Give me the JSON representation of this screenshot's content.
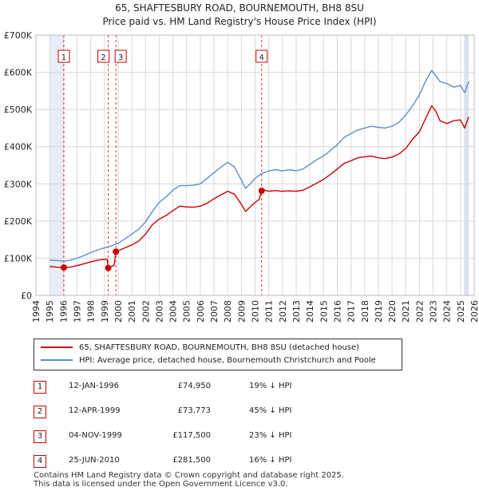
{
  "title_line1": "65, SHAFTESBURY ROAD, BOURNEMOUTH, BH8 8SU",
  "title_line2": "Price paid vs. HM Land Registry's House Price Index (HPI)",
  "colors": {
    "price_paid": "#cc0000",
    "hpi": "#5b8fd0",
    "grid": "#d8d8d8",
    "band": "#e8edf7"
  },
  "legend": {
    "price_paid_label": "65, SHAFTESBURY ROAD, BOURNEMOUTH, BH8 8SU (detached house)",
    "hpi_label": "HPI: Average price, detached house, Bournemouth Christchurch and Poole"
  },
  "sales": [
    {
      "num": "1",
      "date": "12-JAN-1996",
      "price": "£74,950",
      "hpi": "19% ↓ HPI"
    },
    {
      "num": "2",
      "date": "12-APR-1999",
      "price": "£73,773",
      "hpi": "45% ↓ HPI"
    },
    {
      "num": "3",
      "date": "04-NOV-1999",
      "price": "£117,500",
      "hpi": "23% ↓ HPI"
    },
    {
      "num": "4",
      "date": "25-JUN-2010",
      "price": "£281,500",
      "hpi": "16% ↓ HPI"
    }
  ],
  "footer": {
    "line1": "Contains HM Land Registry data © Crown copyright and database right 2025.",
    "line2": "This data is licensed under the Open Government Licence v3.0."
  },
  "chart_data": {
    "type": "line",
    "title": "65, SHAFTESBURY ROAD, BOURNEMOUTH, BH8 8SU",
    "subtitle": "Price paid vs. HM Land Registry's House Price Index (HPI)",
    "xlim": [
      1994,
      2026
    ],
    "ylim": [
      0,
      700000
    ],
    "y_ticks": [
      0,
      100000,
      200000,
      300000,
      400000,
      500000,
      600000,
      700000
    ],
    "y_tick_labels": [
      "£0",
      "£100K",
      "£200K",
      "£300K",
      "£400K",
      "£500K",
      "£600K",
      "£700K"
    ],
    "x_ticks": [
      1994,
      1995,
      1996,
      1997,
      1998,
      1999,
      2000,
      2001,
      2002,
      2003,
      2004,
      2005,
      2006,
      2007,
      2008,
      2009,
      2010,
      2011,
      2012,
      2013,
      2014,
      2015,
      2016,
      2017,
      2018,
      2019,
      2020,
      2021,
      2022,
      2023,
      2024,
      2025,
      2026
    ],
    "x_tick_labels": [
      "1994",
      "1995",
      "1996",
      "1997",
      "1998",
      "1999",
      "2000",
      "2001",
      "2002",
      "2003",
      "2004",
      "2005",
      "2006",
      "2007",
      "2008",
      "2009",
      "2010",
      "2011",
      "2012",
      "2013",
      "2014",
      "2015",
      "2016",
      "2017",
      "2018",
      "2019",
      "2020",
      "2021",
      "2022",
      "2023",
      "2024",
      "2025",
      "2026"
    ],
    "shaded_regions": [
      [
        1995.0,
        1996.04
      ],
      [
        2025.3,
        2025.6
      ]
    ],
    "sale_markers": [
      {
        "label": "1",
        "x": 1996.04,
        "y": 74950
      },
      {
        "label": "2",
        "x": 1999.28,
        "y": 73773
      },
      {
        "label": "3",
        "x": 1999.84,
        "y": 117500
      },
      {
        "label": "4",
        "x": 2010.48,
        "y": 281500
      }
    ],
    "series": [
      {
        "name": "65, SHAFTESBURY ROAD, BOURNEMOUTH, BH8 8SU (detached house)",
        "color": "#cc0000",
        "points": [
          [
            1995.0,
            78000
          ],
          [
            1995.5,
            76000
          ],
          [
            1996.04,
            74950
          ],
          [
            1996.5,
            76000
          ],
          [
            1997.0,
            80000
          ],
          [
            1997.5,
            85000
          ],
          [
            1998.0,
            90000
          ],
          [
            1998.5,
            95000
          ],
          [
            1999.0,
            97000
          ],
          [
            1999.2,
            97000
          ],
          [
            1999.28,
            73773
          ],
          [
            1999.5,
            78000
          ],
          [
            1999.7,
            80000
          ],
          [
            1999.84,
            117500
          ],
          [
            2000.0,
            120000
          ],
          [
            2000.5,
            128000
          ],
          [
            2001.0,
            136000
          ],
          [
            2001.5,
            146000
          ],
          [
            2002.0,
            165000
          ],
          [
            2002.5,
            190000
          ],
          [
            2003.0,
            205000
          ],
          [
            2003.5,
            215000
          ],
          [
            2004.0,
            228000
          ],
          [
            2004.5,
            240000
          ],
          [
            2005.0,
            238000
          ],
          [
            2005.5,
            237000
          ],
          [
            2006.0,
            240000
          ],
          [
            2006.5,
            248000
          ],
          [
            2007.0,
            260000
          ],
          [
            2007.5,
            270000
          ],
          [
            2008.0,
            280000
          ],
          [
            2008.5,
            272000
          ],
          [
            2009.0,
            245000
          ],
          [
            2009.3,
            226000
          ],
          [
            2009.7,
            240000
          ],
          [
            2010.0,
            250000
          ],
          [
            2010.3,
            258000
          ],
          [
            2010.48,
            281500
          ],
          [
            2010.7,
            283000
          ],
          [
            2011.0,
            280000
          ],
          [
            2011.5,
            282000
          ],
          [
            2012.0,
            280000
          ],
          [
            2012.5,
            281000
          ],
          [
            2013.0,
            280000
          ],
          [
            2013.5,
            283000
          ],
          [
            2014.0,
            292000
          ],
          [
            2014.5,
            302000
          ],
          [
            2015.0,
            312000
          ],
          [
            2015.5,
            325000
          ],
          [
            2016.0,
            340000
          ],
          [
            2016.5,
            355000
          ],
          [
            2017.0,
            362000
          ],
          [
            2017.5,
            370000
          ],
          [
            2018.0,
            373000
          ],
          [
            2018.5,
            375000
          ],
          [
            2019.0,
            370000
          ],
          [
            2019.5,
            368000
          ],
          [
            2020.0,
            372000
          ],
          [
            2020.5,
            380000
          ],
          [
            2021.0,
            395000
          ],
          [
            2021.5,
            420000
          ],
          [
            2022.0,
            440000
          ],
          [
            2022.5,
            480000
          ],
          [
            2022.9,
            510000
          ],
          [
            2023.2,
            495000
          ],
          [
            2023.5,
            470000
          ],
          [
            2024.0,
            462000
          ],
          [
            2024.5,
            470000
          ],
          [
            2025.0,
            472000
          ],
          [
            2025.3,
            450000
          ],
          [
            2025.6,
            480000
          ]
        ]
      },
      {
        "name": "HPI: Average price, detached house, Bournemouth Christchurch and Poole",
        "color": "#5b8fd0",
        "points": [
          [
            1995.0,
            95000
          ],
          [
            1995.5,
            94000
          ],
          [
            1996.0,
            92000
          ],
          [
            1996.5,
            95000
          ],
          [
            1997.0,
            100000
          ],
          [
            1997.5,
            107000
          ],
          [
            1998.0,
            115000
          ],
          [
            1998.5,
            122000
          ],
          [
            1999.0,
            128000
          ],
          [
            1999.5,
            133000
          ],
          [
            2000.0,
            140000
          ],
          [
            2000.5,
            152000
          ],
          [
            2001.0,
            165000
          ],
          [
            2001.5,
            178000
          ],
          [
            2002.0,
            198000
          ],
          [
            2002.5,
            225000
          ],
          [
            2003.0,
            250000
          ],
          [
            2003.5,
            265000
          ],
          [
            2004.0,
            283000
          ],
          [
            2004.5,
            295000
          ],
          [
            2005.0,
            295000
          ],
          [
            2005.5,
            296000
          ],
          [
            2006.0,
            300000
          ],
          [
            2006.5,
            315000
          ],
          [
            2007.0,
            330000
          ],
          [
            2007.5,
            345000
          ],
          [
            2008.0,
            358000
          ],
          [
            2008.5,
            345000
          ],
          [
            2009.0,
            310000
          ],
          [
            2009.3,
            288000
          ],
          [
            2009.7,
            302000
          ],
          [
            2010.0,
            315000
          ],
          [
            2010.5,
            328000
          ],
          [
            2011.0,
            335000
          ],
          [
            2011.5,
            338000
          ],
          [
            2012.0,
            335000
          ],
          [
            2012.5,
            338000
          ],
          [
            2013.0,
            335000
          ],
          [
            2013.5,
            340000
          ],
          [
            2014.0,
            352000
          ],
          [
            2014.5,
            365000
          ],
          [
            2015.0,
            375000
          ],
          [
            2015.5,
            390000
          ],
          [
            2016.0,
            405000
          ],
          [
            2016.5,
            425000
          ],
          [
            2017.0,
            435000
          ],
          [
            2017.5,
            445000
          ],
          [
            2018.0,
            450000
          ],
          [
            2018.5,
            455000
          ],
          [
            2019.0,
            452000
          ],
          [
            2019.5,
            450000
          ],
          [
            2020.0,
            455000
          ],
          [
            2020.5,
            465000
          ],
          [
            2021.0,
            485000
          ],
          [
            2021.5,
            510000
          ],
          [
            2022.0,
            540000
          ],
          [
            2022.5,
            580000
          ],
          [
            2022.9,
            605000
          ],
          [
            2023.2,
            590000
          ],
          [
            2023.5,
            575000
          ],
          [
            2024.0,
            570000
          ],
          [
            2024.5,
            560000
          ],
          [
            2025.0,
            565000
          ],
          [
            2025.3,
            545000
          ],
          [
            2025.6,
            575000
          ]
        ]
      }
    ]
  }
}
